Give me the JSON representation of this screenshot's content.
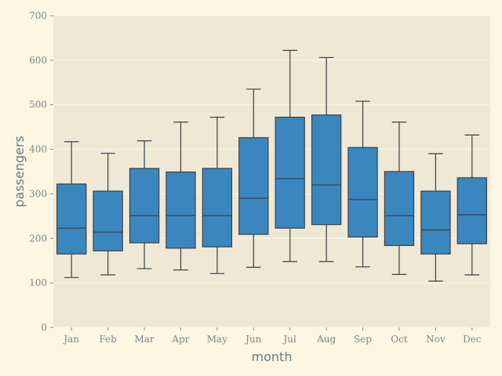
{
  "chart_data": {
    "type": "box",
    "xlabel": "month",
    "ylabel": "passengers",
    "ylim": [
      0,
      700
    ],
    "yticks": [
      0,
      100,
      200,
      300,
      400,
      500,
      600,
      700
    ],
    "grid": true,
    "categories": [
      "Jan",
      "Feb",
      "Mar",
      "Apr",
      "May",
      "Jun",
      "Jul",
      "Aug",
      "Sep",
      "Oct",
      "Nov",
      "Dec"
    ],
    "boxes": [
      {
        "category": "Jan",
        "min": 112,
        "q1": 165,
        "median": 223,
        "q3": 322,
        "max": 417
      },
      {
        "category": "Feb",
        "min": 118,
        "q1": 172,
        "median": 214,
        "q3": 306,
        "max": 391
      },
      {
        "category": "Mar",
        "min": 132,
        "q1": 190,
        "median": 251,
        "q3": 357,
        "max": 419
      },
      {
        "category": "Apr",
        "min": 129,
        "q1": 178,
        "median": 251,
        "q3": 349,
        "max": 461
      },
      {
        "category": "May",
        "min": 121,
        "q1": 181,
        "median": 251,
        "q3": 357,
        "max": 472
      },
      {
        "category": "Jun",
        "min": 135,
        "q1": 209,
        "median": 290,
        "q3": 426,
        "max": 535
      },
      {
        "category": "Jul",
        "min": 148,
        "q1": 223,
        "median": 334,
        "q3": 472,
        "max": 622
      },
      {
        "category": "Aug",
        "min": 148,
        "q1": 231,
        "median": 320,
        "q3": 477,
        "max": 606
      },
      {
        "category": "Sep",
        "min": 136,
        "q1": 203,
        "median": 287,
        "q3": 404,
        "max": 508
      },
      {
        "category": "Oct",
        "min": 119,
        "q1": 184,
        "median": 251,
        "q3": 350,
        "max": 461
      },
      {
        "category": "Nov",
        "min": 104,
        "q1": 165,
        "median": 219,
        "q3": 306,
        "max": 390
      },
      {
        "category": "Dec",
        "min": 118,
        "q1": 188,
        "median": 253,
        "q3": 336,
        "max": 432
      }
    ],
    "colors": {
      "background": "#fdf6e3",
      "plot_bg": "#eee8d5",
      "box_fill": "#3a87c0",
      "line": "#3a3f44",
      "grid": "#fbf7ee",
      "tick_text": "#7a8587",
      "label_text": "#657b83"
    }
  }
}
